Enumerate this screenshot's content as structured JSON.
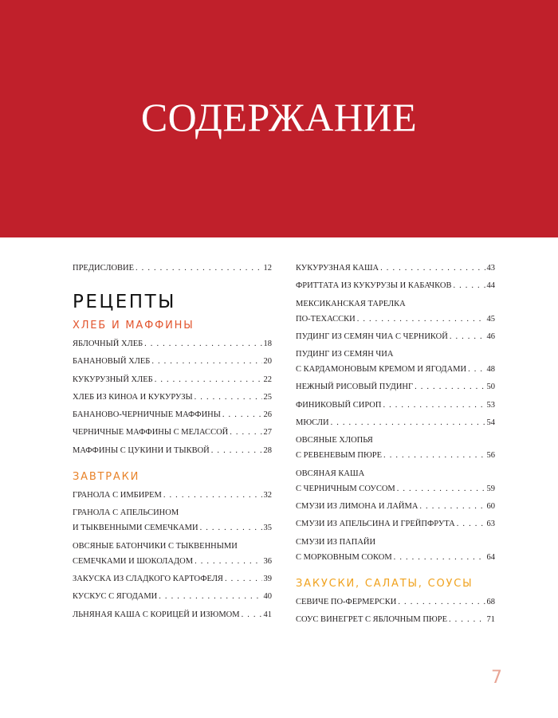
{
  "header": {
    "title": "СОДЕРЖАНИЕ",
    "background_color": "#c0202b"
  },
  "preface": {
    "lines": [
      "ПРЕДИСЛОВИЕ"
    ],
    "page": "12"
  },
  "recipes_heading": "РЕЦЕПТЫ",
  "sections": [
    {
      "title": "ХЛЕБ И МАФФИНЫ",
      "color": "#e2552e",
      "entries": [
        {
          "lines": [
            "ЯБЛОЧНЫЙ ХЛЕБ"
          ],
          "page": "18"
        },
        {
          "lines": [
            "БАНАНОВЫЙ ХЛЕБ"
          ],
          "page": "20"
        },
        {
          "lines": [
            "КУКУРУЗНЫЙ ХЛЕБ"
          ],
          "page": "22"
        },
        {
          "lines": [
            "ХЛЕБ ИЗ КИНОА И КУКУРУЗЫ"
          ],
          "page": "25"
        },
        {
          "lines": [
            "БАНАНОВО-ЧЕРНИЧНЫЕ МАФФИНЫ"
          ],
          "page": "26"
        },
        {
          "lines": [
            "ЧЕРНИЧНЫЕ МАФФИНЫ С МЕЛАССОЙ"
          ],
          "page": "27"
        },
        {
          "lines": [
            "МАФФИНЫ С ЦУКИНИ И ТЫКВОЙ"
          ],
          "page": "28"
        }
      ]
    },
    {
      "title": "ЗАВТРАКИ",
      "color": "#e8832a",
      "entries": [
        {
          "lines": [
            "ГРАНОЛА С ИМБИРЕМ"
          ],
          "page": "32"
        },
        {
          "lines": [
            "ГРАНОЛА С АПЕЛЬСИНОМ",
            "И ТЫКВЕННЫМИ СЕМЕЧКАМИ"
          ],
          "page": "35"
        },
        {
          "lines": [
            "ОВСЯНЫЕ БАТОНЧИКИ С ТЫКВЕННЫМИ",
            "СЕМЕЧКАМИ И ШОКОЛАДОМ"
          ],
          "page": "36"
        },
        {
          "lines": [
            "ЗАКУСКА ИЗ СЛАДКОГО КАРТОФЕЛЯ"
          ],
          "page": "39"
        },
        {
          "lines": [
            "КУСКУС С ЯГОДАМИ"
          ],
          "page": "40"
        },
        {
          "lines": [
            "ЛЬНЯНАЯ КАША С КОРИЦЕЙ И ИЗЮМОМ"
          ],
          "page": "41"
        },
        {
          "lines": [
            "КУКУРУЗНАЯ КАША"
          ],
          "page": "43"
        },
        {
          "lines": [
            "ФРИТТАТА ИЗ КУКУРУЗЫ И КАБАЧКОВ"
          ],
          "page": "44"
        },
        {
          "lines": [
            "МЕКСИКАНСКАЯ ТАРЕЛКА",
            "ПО-ТЕХАССКИ"
          ],
          "page": "45"
        },
        {
          "lines": [
            "ПУДИНГ ИЗ СЕМЯН ЧИА С ЧЕРНИКОЙ"
          ],
          "page": "46"
        },
        {
          "lines": [
            "ПУДИНГ ИЗ СЕМЯН ЧИА",
            "С КАРДАМОНОВЫМ КРЕМОМ И ЯГОДАМИ"
          ],
          "page": "48"
        },
        {
          "lines": [
            "НЕЖНЫЙ РИСОВЫЙ ПУДИНГ"
          ],
          "page": "50"
        },
        {
          "lines": [
            "ФИНИКОВЫЙ СИРОП"
          ],
          "page": "53"
        },
        {
          "lines": [
            "МЮСЛИ"
          ],
          "page": "54"
        },
        {
          "lines": [
            "ОВСЯНЫЕ ХЛОПЬЯ",
            "С РЕВЕНЕВЫМ ПЮРЕ"
          ],
          "page": "56"
        },
        {
          "lines": [
            "ОВСЯНАЯ КАША",
            "С ЧЕРНИЧНЫМ СОУСОМ"
          ],
          "page": "59"
        },
        {
          "lines": [
            "СМУЗИ ИЗ ЛИМОНА И ЛАЙМА"
          ],
          "page": "60"
        },
        {
          "lines": [
            "СМУЗИ ИЗ АПЕЛЬСИНА И ГРЕЙПФРУТА"
          ],
          "page": "63"
        },
        {
          "lines": [
            "СМУЗИ ИЗ ПАПАЙИ",
            "С МОРКОВНЫМ СОКОМ"
          ],
          "page": "64"
        }
      ]
    },
    {
      "title": "ЗАКУСКИ, САЛАТЫ, СОУСЫ",
      "color": "#f0a21e",
      "entries": [
        {
          "lines": [
            "СЕВИЧЕ ПО-ФЕРМЕРСКИ"
          ],
          "page": "68"
        },
        {
          "lines": [
            "СОУС ВИНЕГРЕТ С ЯБЛОЧНЫМ ПЮРЕ"
          ],
          "page": "71"
        }
      ]
    }
  ],
  "page_number": "7"
}
